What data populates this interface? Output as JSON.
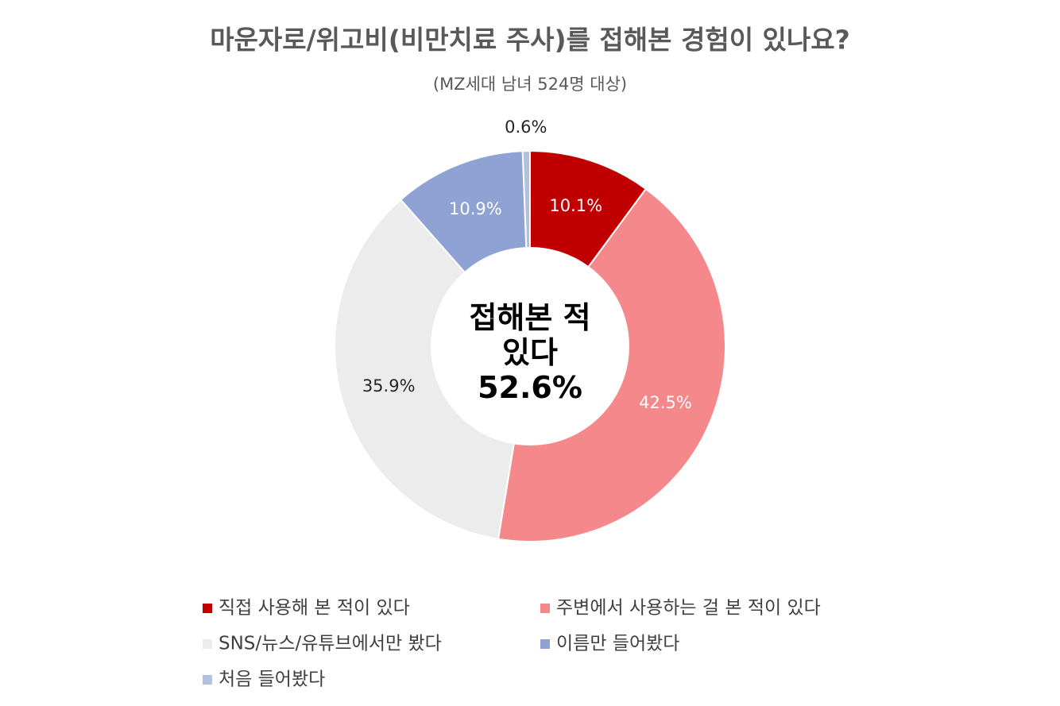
{
  "chart_data": {
    "type": "donut",
    "title": "마운자로/위고비(비만치료 주사)를 접해본 경험이 있나요?",
    "subtitle": "(MZ세대 남녀 524명 대상)",
    "center_label": "접해본 적 있다",
    "center_value": "52.6%",
    "categories": [
      "직접 사용해 본 적이 있다",
      "주변에서 사용하는 걸 본 적이 있다",
      "SNS/뉴스/유튜브에서만 봤다",
      "이름만 들어봤다",
      "처음 들어봤다"
    ],
    "values": [
      10.1,
      42.5,
      35.9,
      10.9,
      0.6
    ],
    "value_labels": [
      "10.1%",
      "42.5%",
      "35.9%",
      "10.9%",
      "0.6%"
    ],
    "colors": [
      "#c00000",
      "#f4888a",
      "#ececec",
      "#8fa2d4",
      "#b4bfe0"
    ],
    "legend": "bottom"
  }
}
